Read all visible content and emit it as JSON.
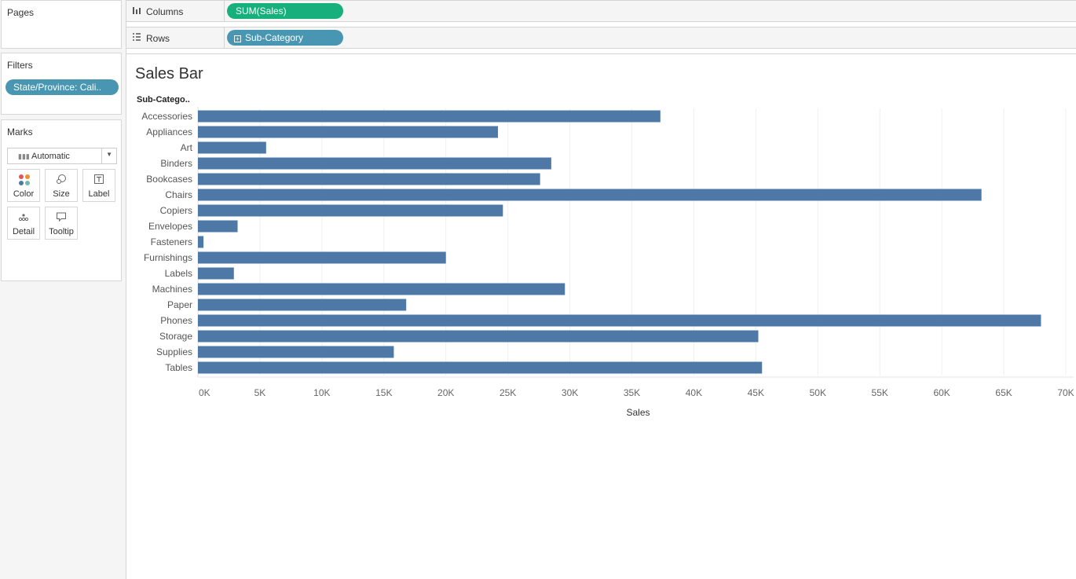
{
  "panels": {
    "pages": {
      "title": "Pages"
    },
    "filters": {
      "title": "Filters",
      "pill": "State/Province: Cali.."
    },
    "marks": {
      "title": "Marks",
      "type": "Automatic",
      "buttons": {
        "color": "Color",
        "size": "Size",
        "label": "Label",
        "detail": "Detail",
        "tooltip": "Tooltip"
      }
    }
  },
  "shelves": {
    "columns": {
      "label": "Columns",
      "pill": "SUM(Sales)"
    },
    "rows": {
      "label": "Rows",
      "pill": "Sub-Category"
    }
  },
  "colors": {
    "bar": "#4e79a7",
    "measure_pill": "#17b07c",
    "dimension_pill": "#4996b2"
  },
  "sheet": {
    "title": "Sales Bar",
    "row_header": "Sub-Catego.."
  },
  "chart_data": {
    "type": "bar",
    "orientation": "horizontal",
    "title": "Sales Bar",
    "xlabel": "Sales",
    "ylabel": "Sub-Catego..",
    "xlim": [
      0,
      70000
    ],
    "x_ticks": [
      "0K",
      "5K",
      "10K",
      "15K",
      "20K",
      "25K",
      "30K",
      "35K",
      "40K",
      "45K",
      "50K",
      "55K",
      "60K",
      "65K",
      "70K"
    ],
    "grid": true,
    "categories": [
      "Accessories",
      "Appliances",
      "Art",
      "Binders",
      "Bookcases",
      "Chairs",
      "Copiers",
      "Envelopes",
      "Fasteners",
      "Furnishings",
      "Labels",
      "Machines",
      "Paper",
      "Phones",
      "Storage",
      "Supplies",
      "Tables"
    ],
    "values": [
      37300,
      24200,
      5500,
      28500,
      27600,
      63200,
      24600,
      3200,
      450,
      20000,
      2900,
      29600,
      16800,
      68000,
      45200,
      15800,
      45500
    ]
  }
}
